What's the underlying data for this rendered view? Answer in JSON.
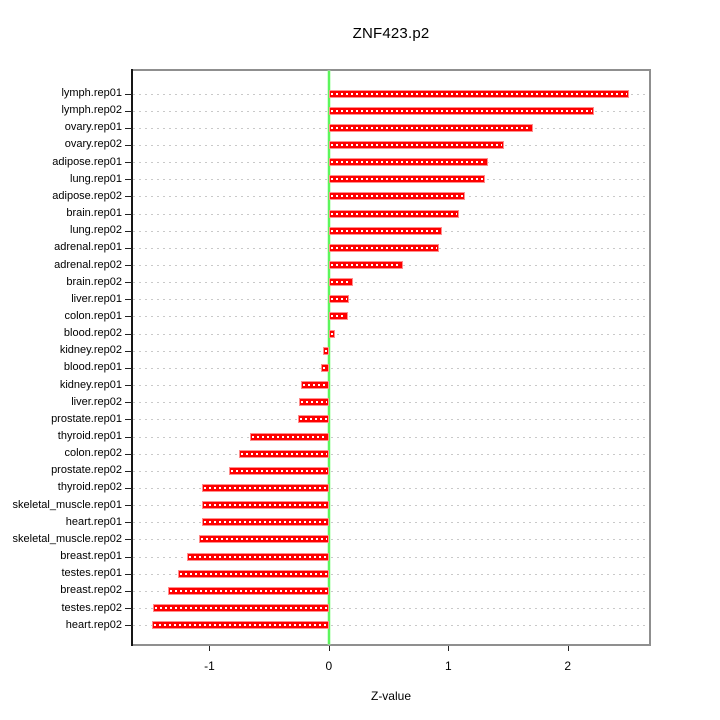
{
  "chart_data": {
    "type": "bar",
    "orientation": "horizontal",
    "title": "ZNF423.p2",
    "xlabel": "Z-value",
    "categories": [
      "lymph.rep01",
      "lymph.rep02",
      "ovary.rep01",
      "ovary.rep02",
      "adipose.rep01",
      "lung.rep01",
      "adipose.rep02",
      "brain.rep01",
      "lung.rep02",
      "adrenal.rep01",
      "adrenal.rep02",
      "brain.rep02",
      "liver.rep01",
      "colon.rep01",
      "blood.rep02",
      "kidney.rep02",
      "blood.rep01",
      "kidney.rep01",
      "liver.rep02",
      "prostate.rep01",
      "thyroid.rep01",
      "colon.rep02",
      "prostate.rep02",
      "thyroid.rep02",
      "skeletal_muscle.rep01",
      "heart.rep01",
      "skeletal_muscle.rep02",
      "breast.rep01",
      "testes.rep01",
      "breast.rep02",
      "testes.rep02",
      "heart.rep02"
    ],
    "values": [
      2.51,
      2.22,
      1.71,
      1.47,
      1.33,
      1.31,
      1.14,
      1.09,
      0.95,
      0.92,
      0.62,
      0.2,
      0.17,
      0.16,
      0.05,
      -0.05,
      -0.07,
      -0.23,
      -0.25,
      -0.26,
      -0.66,
      -0.75,
      -0.84,
      -1.06,
      -1.06,
      -1.06,
      -1.09,
      -1.19,
      -1.26,
      -1.35,
      -1.47,
      -1.48
    ],
    "x_ticks": [
      "-1",
      "0",
      "1",
      "2"
    ],
    "x_tick_values": [
      -1,
      0,
      1,
      2
    ],
    "xlim": [
      -1.64,
      2.68
    ],
    "zero_line": 0,
    "grid": true,
    "legend": "none",
    "colors": {
      "bar": "#fe0000",
      "bar_border": "#ff8d8d",
      "bar_center_dash": "#ffffff",
      "zero_line": "#5cf55c",
      "grid_line": "#c9c9c9",
      "box_border": "#8f8f8f",
      "axis": "#161616"
    }
  }
}
